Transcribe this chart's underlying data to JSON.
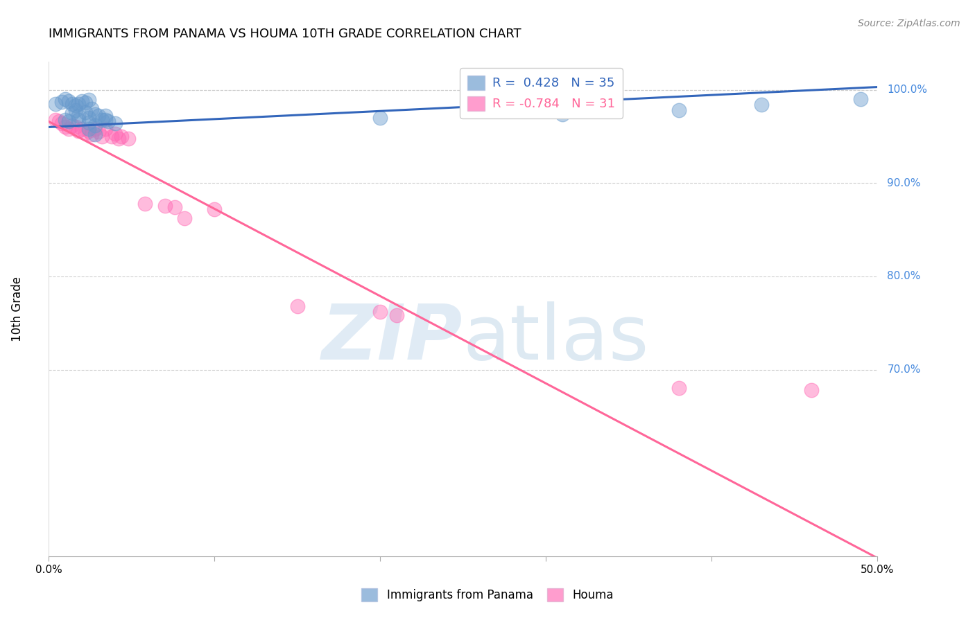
{
  "title": "IMMIGRANTS FROM PANAMA VS HOUMA 10TH GRADE CORRELATION CHART",
  "source": "Source: ZipAtlas.com",
  "ylabel": "10th Grade",
  "xlim": [
    0.0,
    0.5
  ],
  "ylim": [
    0.5,
    1.03
  ],
  "xticks": [
    0.0,
    0.1,
    0.2,
    0.3,
    0.4,
    0.5
  ],
  "xtick_labels": [
    "0.0%",
    "",
    "",
    "",
    "",
    "50.0%"
  ],
  "right_yticks": [
    0.7,
    0.8,
    0.9,
    1.0
  ],
  "right_ytick_labels": [
    "70.0%",
    "80.0%",
    "90.0%",
    "100.0%"
  ],
  "legend_r_blue": "0.428",
  "legend_n_blue": "35",
  "legend_r_pink": "-0.784",
  "legend_n_pink": "31",
  "blue_color": "#6699CC",
  "pink_color": "#FF69B4",
  "blue_line_color": "#3366BB",
  "pink_line_color": "#FF6699",
  "grid_color": "#CCCCCC",
  "background_color": "#FFFFFF",
  "blue_scatter_x": [
    0.004,
    0.008,
    0.01,
    0.012,
    0.014,
    0.016,
    0.018,
    0.02,
    0.022,
    0.024,
    0.014,
    0.016,
    0.018,
    0.022,
    0.026,
    0.028,
    0.03,
    0.032,
    0.034,
    0.024,
    0.01,
    0.012,
    0.018,
    0.024,
    0.028,
    0.034,
    0.04,
    0.036,
    0.024,
    0.028,
    0.2,
    0.31,
    0.38,
    0.43,
    0.49
  ],
  "blue_scatter_y": [
    0.985,
    0.987,
    0.99,
    0.988,
    0.985,
    0.983,
    0.985,
    0.988,
    0.986,
    0.989,
    0.975,
    0.978,
    0.972,
    0.976,
    0.98,
    0.974,
    0.972,
    0.968,
    0.972,
    0.97,
    0.968,
    0.966,
    0.968,
    0.965,
    0.962,
    0.968,
    0.964,
    0.966,
    0.958,
    0.952,
    0.97,
    0.974,
    0.978,
    0.984,
    0.99
  ],
  "pink_scatter_x": [
    0.004,
    0.006,
    0.008,
    0.01,
    0.012,
    0.014,
    0.016,
    0.018,
    0.02,
    0.022,
    0.024,
    0.026,
    0.028,
    0.03,
    0.032,
    0.034,
    0.038,
    0.04,
    0.042,
    0.044,
    0.048,
    0.058,
    0.07,
    0.076,
    0.082,
    0.1,
    0.15,
    0.2,
    0.21,
    0.38,
    0.46
  ],
  "pink_scatter_y": [
    0.968,
    0.966,
    0.964,
    0.96,
    0.958,
    0.962,
    0.96,
    0.956,
    0.958,
    0.954,
    0.956,
    0.952,
    0.958,
    0.955,
    0.95,
    0.958,
    0.95,
    0.953,
    0.948,
    0.95,
    0.948,
    0.878,
    0.876,
    0.874,
    0.862,
    0.872,
    0.768,
    0.762,
    0.758,
    0.68,
    0.678
  ],
  "blue_line_x": [
    0.0,
    0.5
  ],
  "blue_line_y": [
    0.96,
    1.003
  ],
  "pink_line_x": [
    0.0,
    0.5
  ],
  "pink_line_y": [
    0.966,
    0.498
  ]
}
